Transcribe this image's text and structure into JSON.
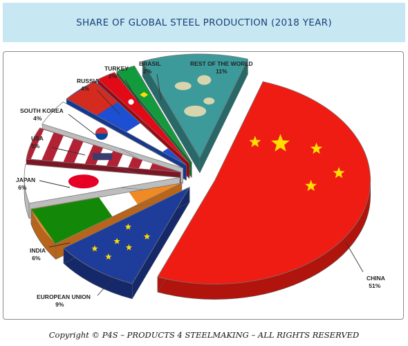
{
  "header": {
    "title": "SHARE OF GLOBAL STEEL PRODUCTION (2018 YEAR)"
  },
  "footer": {
    "copyright": "Copyright © P4S – PRODUCTS 4 STEELMAKING – ALL RIGHTS RESERVED"
  },
  "chart_data": {
    "type": "pie",
    "title": "SHARE OF GLOBAL STEEL PRODUCTION (2018 YEAR)",
    "categories": [
      "CHINA",
      "EUROPEAN UNION",
      "INDIA",
      "JAPAN",
      "USA",
      "SOUTH KOREA",
      "RUSSIA",
      "TURKEY",
      "BRASIL",
      "REST OF THE WORLD"
    ],
    "values": [
      51,
      9,
      6,
      6,
      5,
      4,
      4,
      2,
      2,
      11
    ],
    "value_labels": [
      "51%",
      "9%",
      "6%",
      "6%",
      "5%",
      "4%",
      "4%",
      "2%",
      "2%",
      "11%"
    ],
    "style": "exploded 3D pie with national flag fills",
    "colors": [
      "#ee1c12",
      "#1e3c9a",
      "#f08a24",
      "#ffffff",
      "#b22234",
      "#ffffff",
      "#1c4fd1",
      "#e30a17",
      "#129b3c",
      "#3c9a9a"
    ]
  }
}
